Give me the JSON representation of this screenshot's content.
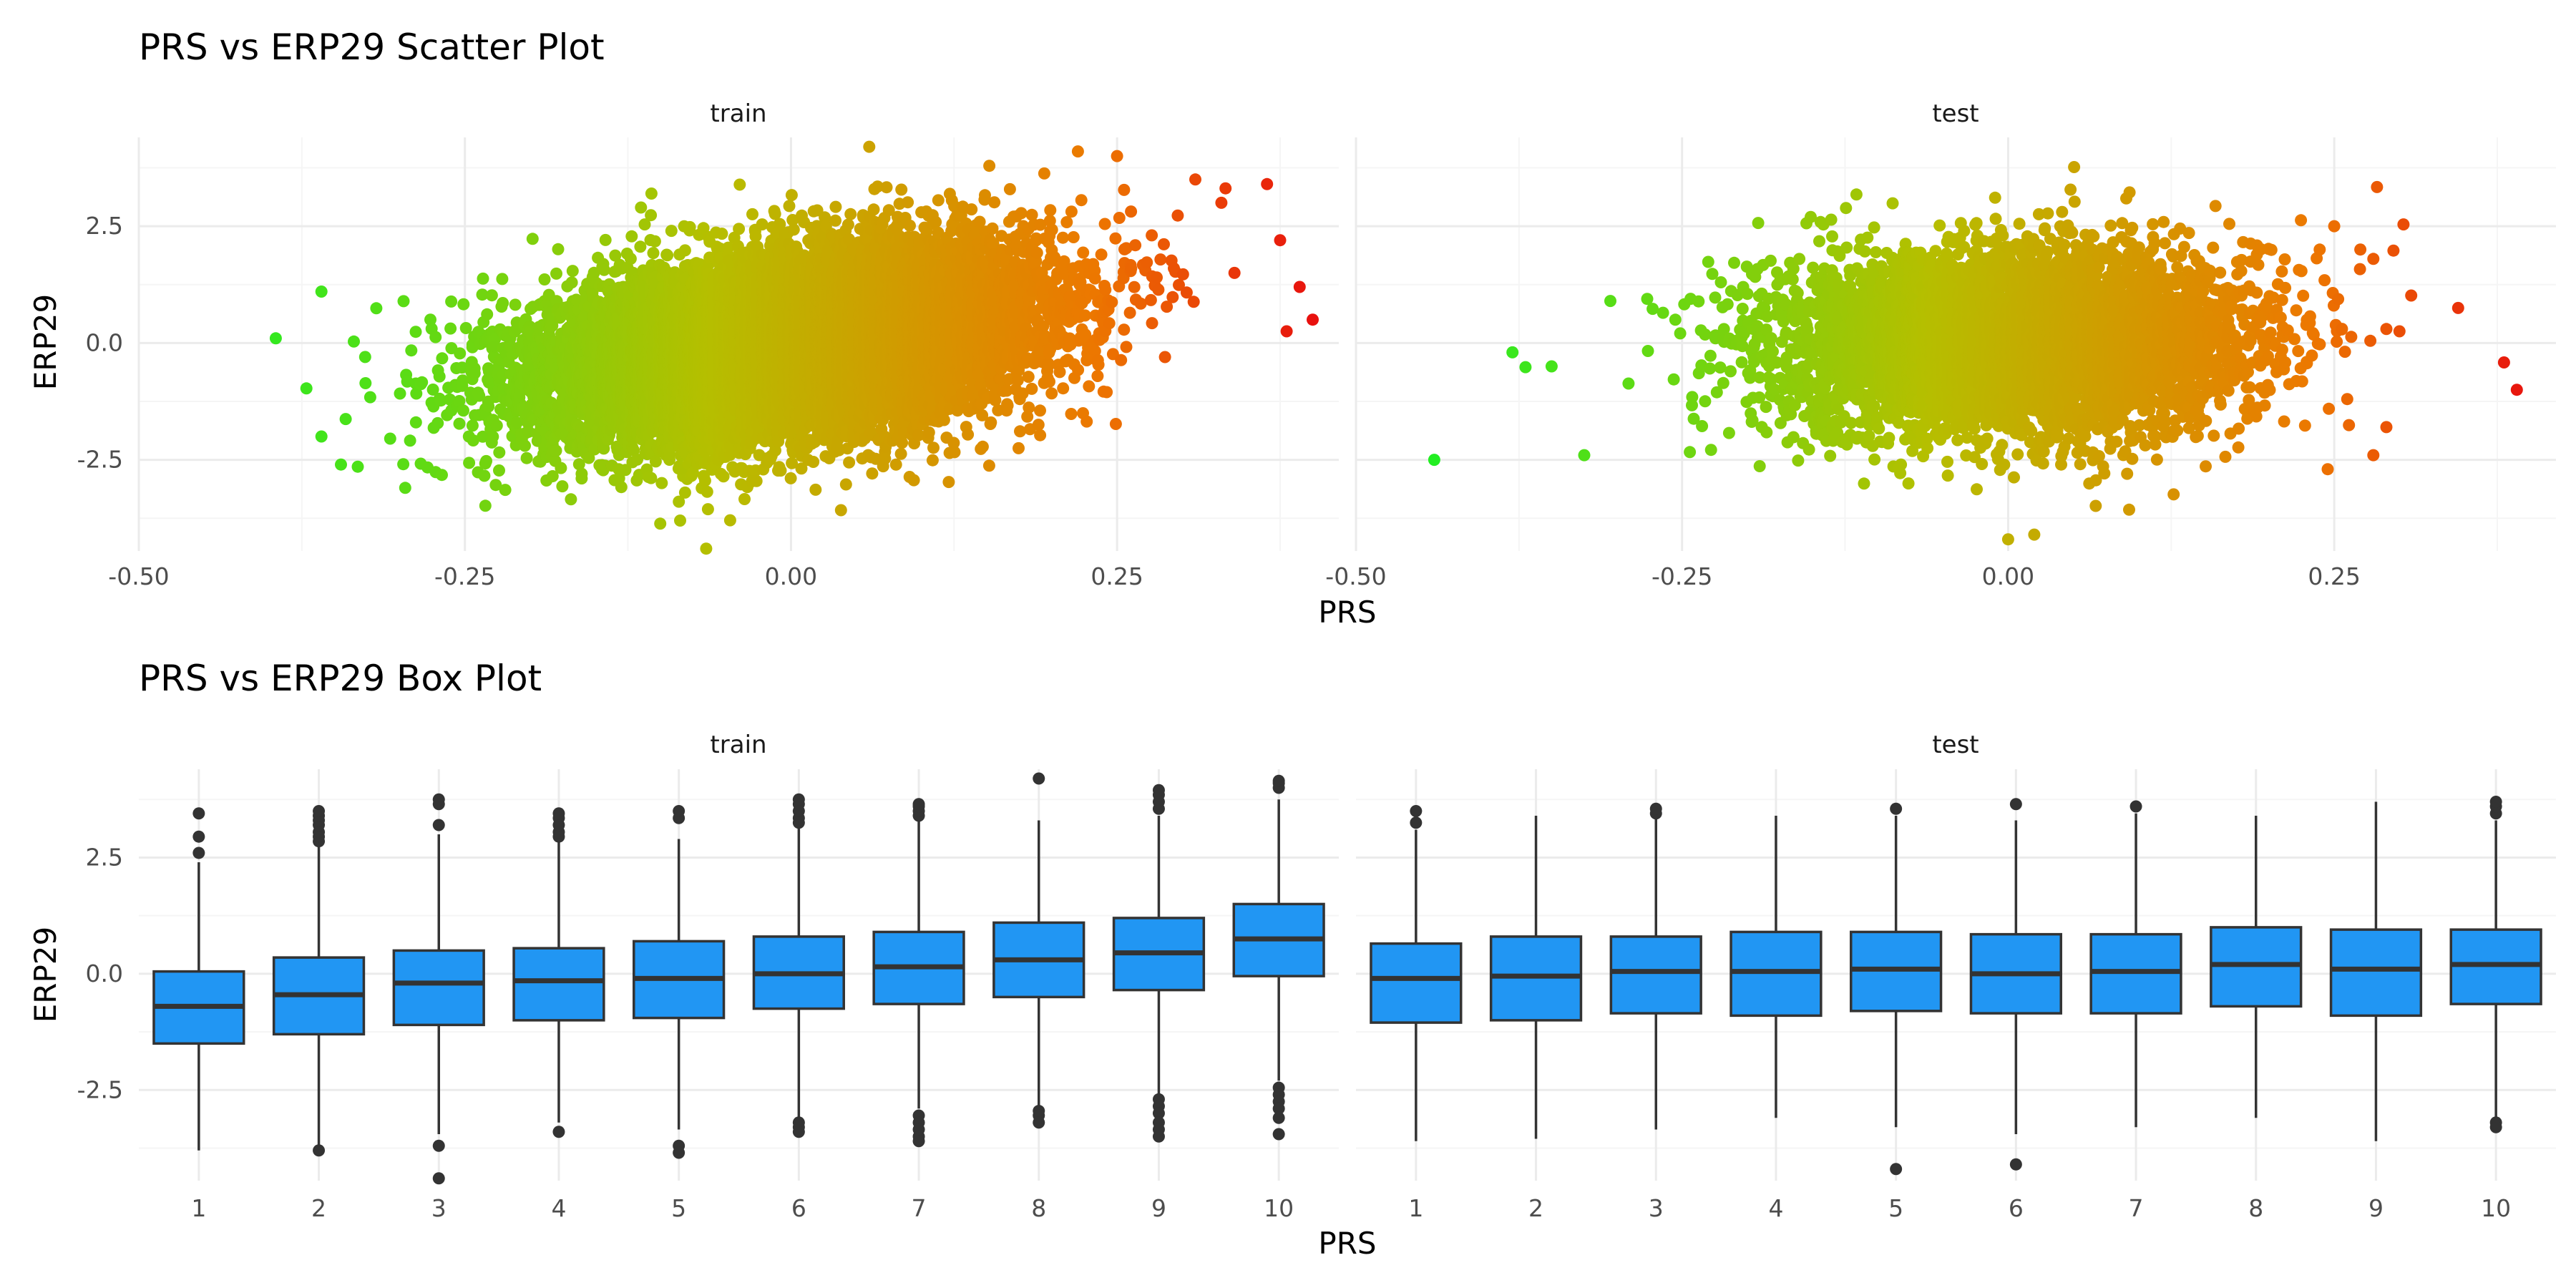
{
  "figure": {
    "scatter_title": "PRS vs ERP29 Scatter Plot",
    "box_title": "PRS vs ERP29 Box Plot"
  },
  "colors": {
    "low": "#22ee22",
    "mid": "#b5bf00",
    "high": "#e8110e",
    "box_fill": "#2196f3",
    "box_line": "#333333",
    "grid_major": "#ebebeb",
    "grid_minor": "#f5f5f5"
  },
  "chart_data": [
    {
      "type": "scatter",
      "title": "PRS vs ERP29 Scatter Plot",
      "xlabel": "PRS",
      "ylabel": "ERP29",
      "facets": [
        "train",
        "test"
      ],
      "xlim": [
        -0.5,
        0.42
      ],
      "ylim": [
        -4.45,
        4.4
      ],
      "x_ticks": [
        -0.5,
        -0.25,
        0.0,
        0.25
      ],
      "x_tick_labels": [
        "-0.50",
        "-0.25",
        "0.00",
        "0.25"
      ],
      "y_ticks": [
        -2.5,
        0.0,
        2.5
      ],
      "y_tick_labels": [
        "-2.5",
        "0.0",
        "2.5"
      ],
      "color_scale": "gradient by PRS: green (low) to red (high)",
      "grid": true,
      "legend": "none",
      "train": {
        "x_mean": 0.0,
        "x_sd": 0.092,
        "y_mean": 0.0,
        "y_sd": 1.0,
        "correlation": 0.35,
        "n_points": 14000,
        "notable_points": [
          {
            "x": -0.395,
            "y": 0.1
          },
          {
            "x": -0.36,
            "y": 1.1
          },
          {
            "x": -0.36,
            "y": -2.0
          },
          {
            "x": -0.345,
            "y": -2.6
          },
          {
            "x": -0.115,
            "y": 2.9
          },
          {
            "x": 0.06,
            "y": 4.2
          },
          {
            "x": -0.065,
            "y": -4.4
          },
          {
            "x": -0.085,
            "y": -3.8
          },
          {
            "x": 0.22,
            "y": 4.1
          },
          {
            "x": 0.25,
            "y": 4.0
          },
          {
            "x": 0.365,
            "y": 3.4
          },
          {
            "x": 0.375,
            "y": 2.2
          },
          {
            "x": 0.39,
            "y": 1.2
          },
          {
            "x": 0.4,
            "y": 0.5
          },
          {
            "x": 0.38,
            "y": 0.25
          },
          {
            "x": 0.31,
            "y": 3.5
          },
          {
            "x": 0.33,
            "y": 3.0
          },
          {
            "x": 0.34,
            "y": 1.5
          }
        ]
      },
      "test": {
        "x_mean": 0.0,
        "x_sd": 0.09,
        "y_mean": 0.0,
        "y_sd": 1.0,
        "correlation": 0.05,
        "n_points": 5500,
        "notable_points": [
          {
            "x": -0.44,
            "y": -2.5
          },
          {
            "x": -0.38,
            "y": -0.2
          },
          {
            "x": -0.35,
            "y": -0.5
          },
          {
            "x": -0.325,
            "y": -2.4
          },
          {
            "x": -0.305,
            "y": 0.9
          },
          {
            "x": 0.0,
            "y": -4.2
          },
          {
            "x": 0.02,
            "y": -4.1
          },
          {
            "x": 0.25,
            "y": 2.5
          },
          {
            "x": 0.27,
            "y": 2.0
          },
          {
            "x": 0.28,
            "y": 1.8
          },
          {
            "x": 0.29,
            "y": 0.3
          },
          {
            "x": 0.29,
            "y": -1.8
          },
          {
            "x": 0.28,
            "y": -2.4
          },
          {
            "x": 0.3,
            "y": 0.25
          },
          {
            "x": 0.345,
            "y": 0.75
          },
          {
            "x": 0.39,
            "y": -1.0
          },
          {
            "x": 0.245,
            "y": -2.7
          },
          {
            "x": 0.26,
            "y": -1.2
          }
        ]
      }
    },
    {
      "type": "box",
      "title": "PRS vs ERP29 Box Plot",
      "xlabel": "PRS",
      "ylabel": "ERP29",
      "facets": [
        "train",
        "test"
      ],
      "categories": [
        "1",
        "2",
        "3",
        "4",
        "5",
        "6",
        "7",
        "8",
        "9",
        "10"
      ],
      "ylim": [
        -4.45,
        4.4
      ],
      "y_ticks": [
        -2.5,
        0.0,
        2.5
      ],
      "y_tick_labels": [
        "-2.5",
        "0.0",
        "2.5"
      ],
      "grid": true,
      "legend": "none",
      "train": [
        {
          "category": "1",
          "q1": -1.5,
          "median": -0.7,
          "q3": 0.05,
          "lower": -3.8,
          "upper": 2.4,
          "outliers": [
            2.6,
            2.95,
            3.45
          ]
        },
        {
          "category": "2",
          "q1": -1.3,
          "median": -0.45,
          "q3": 0.35,
          "lower": -3.75,
          "upper": 2.8,
          "outliers": [
            -3.8,
            2.85,
            2.95,
            3.05,
            3.2,
            3.3,
            3.4,
            3.5
          ]
        },
        {
          "category": "3",
          "q1": -1.1,
          "median": -0.2,
          "q3": 0.5,
          "lower": -3.45,
          "upper": 3.0,
          "outliers": [
            -3.7,
            -4.4,
            3.2,
            3.65,
            3.75
          ]
        },
        {
          "category": "4",
          "q1": -1.0,
          "median": -0.15,
          "q3": 0.55,
          "lower": -3.2,
          "upper": 2.85,
          "outliers": [
            -3.4,
            2.95,
            3.05,
            3.2,
            3.35,
            3.45
          ]
        },
        {
          "category": "5",
          "q1": -0.95,
          "median": -0.1,
          "q3": 0.7,
          "lower": -3.35,
          "upper": 2.9,
          "outliers": [
            -3.7,
            -3.85,
            3.35,
            3.5
          ]
        },
        {
          "category": "6",
          "q1": -0.75,
          "median": 0.0,
          "q3": 0.8,
          "lower": -3.15,
          "upper": 3.2,
          "outliers": [
            -3.2,
            -3.3,
            -3.4,
            3.25,
            3.35,
            3.5,
            3.65,
            3.75
          ]
        },
        {
          "category": "7",
          "q1": -0.65,
          "median": 0.15,
          "q3": 0.9,
          "lower": -2.9,
          "upper": 3.3,
          "outliers": [
            -3.05,
            -3.2,
            -3.35,
            -3.5,
            -3.6,
            3.4,
            3.5,
            3.6,
            3.65
          ]
        },
        {
          "category": "8",
          "q1": -0.5,
          "median": 0.3,
          "q3": 1.1,
          "lower": -2.85,
          "upper": 3.3,
          "outliers": [
            -2.95,
            -3.05,
            -3.2,
            4.2
          ]
        },
        {
          "category": "9",
          "q1": -0.35,
          "median": 0.45,
          "q3": 1.2,
          "lower": -2.6,
          "upper": 3.4,
          "outliers": [
            -2.7,
            -2.85,
            -3.0,
            -3.2,
            -3.35,
            -3.5,
            3.55,
            3.7,
            3.85,
            3.95
          ]
        },
        {
          "category": "10",
          "q1": -0.05,
          "median": 0.75,
          "q3": 1.5,
          "lower": -2.3,
          "upper": 3.75,
          "outliers": [
            -2.45,
            -2.6,
            -2.75,
            -2.9,
            -3.1,
            -3.45,
            4.0,
            4.1,
            4.15
          ]
        }
      ],
      "test": [
        {
          "category": "1",
          "q1": -1.05,
          "median": -0.1,
          "q3": 0.65,
          "lower": -3.6,
          "upper": 3.1,
          "outliers": [
            3.25,
            3.5
          ]
        },
        {
          "category": "2",
          "q1": -1.0,
          "median": -0.05,
          "q3": 0.8,
          "lower": -3.55,
          "upper": 3.4,
          "outliers": []
        },
        {
          "category": "3",
          "q1": -0.85,
          "median": 0.05,
          "q3": 0.8,
          "lower": -3.35,
          "upper": 3.35,
          "outliers": [
            3.45,
            3.55
          ]
        },
        {
          "category": "4",
          "q1": -0.9,
          "median": 0.05,
          "q3": 0.9,
          "lower": -3.1,
          "upper": 3.4,
          "outliers": []
        },
        {
          "category": "5",
          "q1": -0.8,
          "median": 0.1,
          "q3": 0.9,
          "lower": -3.3,
          "upper": 3.4,
          "outliers": [
            -4.2,
            3.55
          ]
        },
        {
          "category": "6",
          "q1": -0.85,
          "median": 0.0,
          "q3": 0.85,
          "lower": -3.45,
          "upper": 3.3,
          "outliers": [
            -4.1,
            3.65
          ]
        },
        {
          "category": "7",
          "q1": -0.85,
          "median": 0.05,
          "q3": 0.85,
          "lower": -3.3,
          "upper": 3.45,
          "outliers": [
            3.6
          ]
        },
        {
          "category": "8",
          "q1": -0.7,
          "median": 0.2,
          "q3": 1.0,
          "lower": -3.1,
          "upper": 3.4,
          "outliers": []
        },
        {
          "category": "9",
          "q1": -0.9,
          "median": 0.1,
          "q3": 0.95,
          "lower": -3.6,
          "upper": 3.7,
          "outliers": []
        },
        {
          "category": "10",
          "q1": -0.65,
          "median": 0.2,
          "q3": 0.95,
          "lower": -3.1,
          "upper": 3.3,
          "outliers": [
            -3.2,
            -3.3,
            3.45,
            3.6,
            3.7
          ]
        }
      ]
    }
  ]
}
